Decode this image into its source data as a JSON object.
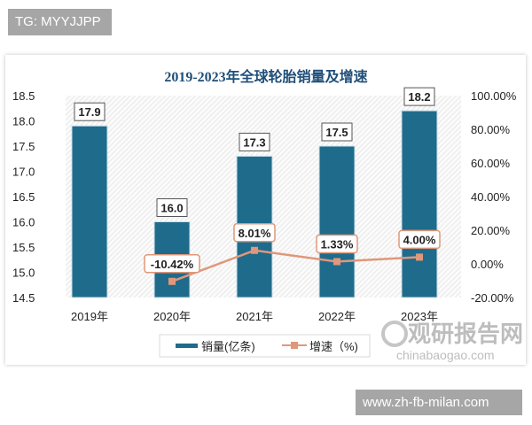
{
  "watermark_top": "TG: MYYJJPP",
  "watermark_bottom": "www.zh-fb-milan.com",
  "logo": {
    "cn": "观研报告网",
    "en": "chinabaogao.com"
  },
  "chart_data": {
    "type": "bar+line",
    "title": "2019-2023年全球轮胎销量及增速",
    "categories": [
      "2019年",
      "2020年",
      "2021年",
      "2022年",
      "2023年"
    ],
    "series": [
      {
        "name": "销量(亿条)",
        "type": "bar",
        "axis": "left",
        "values": [
          17.9,
          16.0,
          17.3,
          17.5,
          18.2
        ],
        "labels": [
          "17.9",
          "16.0",
          "17.3",
          "17.5",
          "18.2"
        ],
        "color": "#1f6b8c"
      },
      {
        "name": "增速（%)",
        "type": "line",
        "axis": "right",
        "values": [
          null,
          -10.42,
          8.01,
          1.33,
          4.0
        ],
        "labels": [
          "",
          "-10.42%",
          "8.01%",
          "1.33%",
          "4.00%"
        ],
        "color": "#e0977a"
      }
    ],
    "left_axis": {
      "range": [
        14.5,
        18.5
      ],
      "ticks": [
        "18.5",
        "18.0",
        "17.5",
        "17.0",
        "16.5",
        "16.0",
        "15.5",
        "15.0",
        "14.5"
      ]
    },
    "right_axis": {
      "range": [
        -20,
        100
      ],
      "ticks": [
        "100.00%",
        "80.00%",
        "60.00%",
        "40.00%",
        "20.00%",
        "0.00%",
        "-20.00%"
      ]
    },
    "legend_placement": "bottom",
    "grid": false
  }
}
